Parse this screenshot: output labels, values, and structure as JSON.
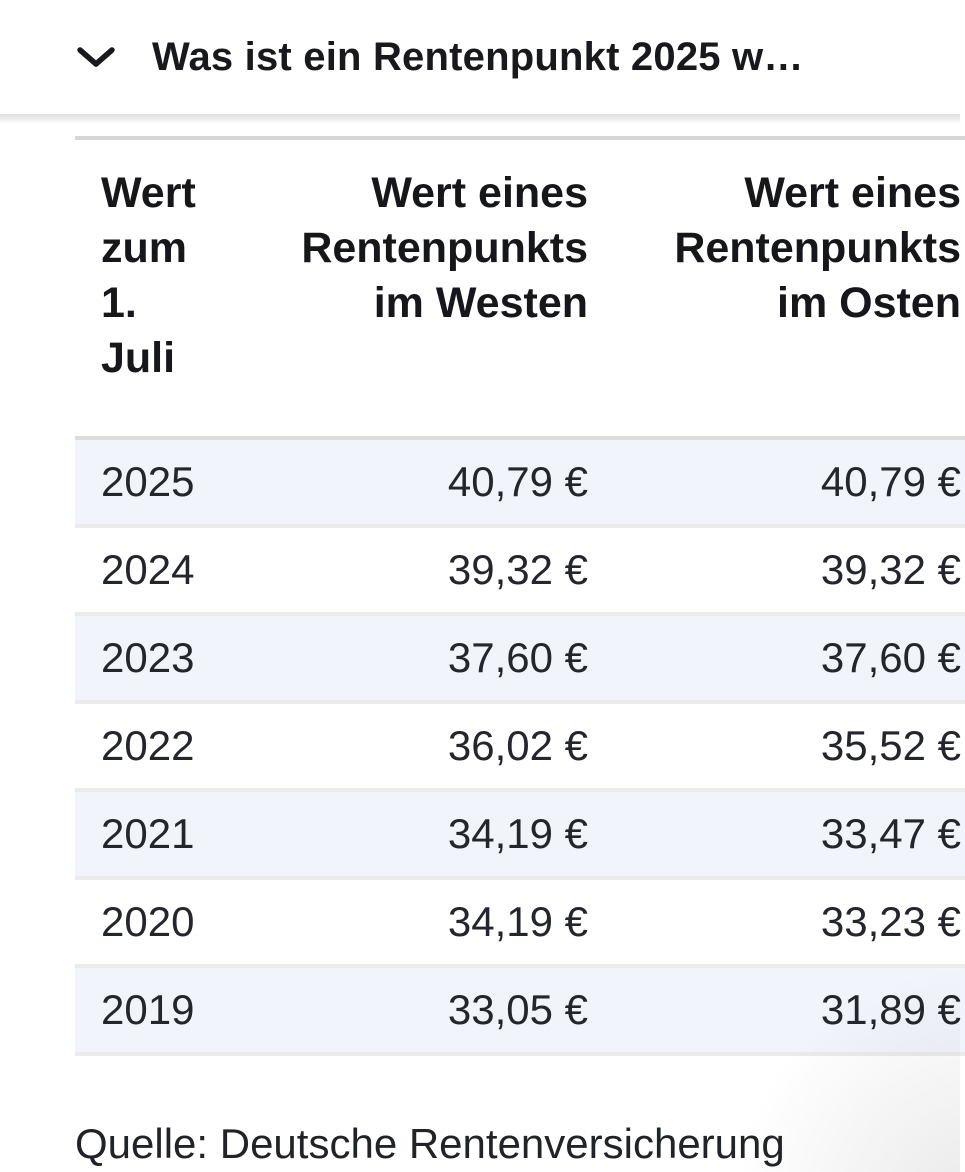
{
  "header": {
    "title": "Was ist ein Rentenpunkt 2025 w…",
    "collapse_icon": "chevron-down"
  },
  "table": {
    "columns": [
      {
        "label": "Wert\nzum\n1.\nJuli",
        "align": "left"
      },
      {
        "label": "Wert eines\nRentenpunkts\nim Westen",
        "align": "right"
      },
      {
        "label": "Wert eines\nRentenpunkts\nim Osten",
        "align": "right"
      }
    ],
    "rows": [
      {
        "year": "2025",
        "west": "40,79 €",
        "east": "40,79 €"
      },
      {
        "year": "2024",
        "west": "39,32 €",
        "east": "39,32 €"
      },
      {
        "year": "2023",
        "west": "37,60 €",
        "east": "37,60 €"
      },
      {
        "year": "2022",
        "west": "36,02 €",
        "east": "35,52 €"
      },
      {
        "year": "2021",
        "west": "34,19 €",
        "east": "33,47 €"
      },
      {
        "year": "2020",
        "west": "34,19 €",
        "east": "33,23 €"
      },
      {
        "year": "2019",
        "west": "33,05 €",
        "east": "31,89 €"
      }
    ]
  },
  "footer": {
    "source": "Quelle: Deutsche Rentenversicherung"
  },
  "colors": {
    "stripe_row": "#f2f4fb",
    "table_top_border": "#d6d6d6",
    "header_border": "#dcdcdc",
    "row_border": "#ebebeb",
    "text": "#1e2127"
  }
}
